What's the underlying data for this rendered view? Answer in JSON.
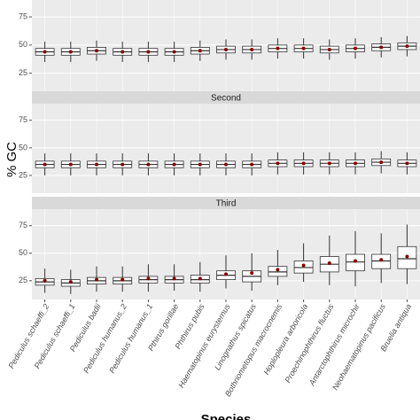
{
  "chart_data": {
    "type": "box",
    "ylabel": "% GC",
    "xlabel": "Species",
    "categories": [
      "Pediculus schaeffi_2",
      "Pediculus schaeffi_1",
      "Pediculus badii",
      "Pediculus humanus_2",
      "Pediculus humanus_1",
      "Pthirus gorillae",
      "Phthirus pubis",
      "Haematopinus eurysternus",
      "Linognathus spicatus",
      "Bothriometopus macrocnemis",
      "Hoplopleura arboricola",
      "Proechinophthirus fluctus",
      "Antarctophthirus microchir",
      "Neohaematopinus pacificus",
      "Bruelia antiqua"
    ],
    "panels": [
      {
        "ylim": [
          9,
          90
        ],
        "yticks": [
          25,
          50,
          75
        ],
        "low": [
          35,
          35,
          36,
          35,
          35,
          35,
          36,
          37,
          37,
          38,
          38,
          37,
          38,
          39,
          40
        ],
        "q1": [
          41,
          41,
          42,
          41,
          41,
          41,
          42,
          43,
          43,
          44,
          44,
          43,
          44,
          45,
          46
        ],
        "median": [
          44,
          44,
          45,
          44,
          44,
          44,
          45,
          46,
          46,
          47,
          47,
          46,
          47,
          48,
          49
        ],
        "q3": [
          47,
          47,
          48,
          47,
          47,
          47,
          48,
          49,
          49,
          50,
          50,
          49,
          50,
          51,
          52
        ],
        "high": [
          53,
          53,
          54,
          53,
          53,
          53,
          54,
          55,
          55,
          56,
          56,
          55,
          56,
          57,
          58
        ],
        "mean": [
          44,
          44,
          45,
          44,
          44,
          44,
          45,
          46,
          46,
          47,
          47,
          46,
          47,
          48,
          49
        ]
      },
      {
        "strip": "Second",
        "ylim": [
          9,
          90
        ],
        "yticks": [
          25,
          50,
          75
        ],
        "low": [
          25,
          25,
          25,
          25,
          25,
          25,
          25,
          25,
          25,
          26,
          26,
          26,
          26,
          27,
          26
        ],
        "q1": [
          32,
          32,
          32,
          32,
          32,
          32,
          32,
          32,
          32,
          33,
          33,
          33,
          33,
          34,
          33
        ],
        "median": [
          35,
          35,
          35,
          35,
          35,
          35,
          35,
          35,
          35,
          36,
          36,
          36,
          36,
          37,
          36
        ],
        "q3": [
          38,
          38,
          38,
          38,
          38,
          38,
          38,
          38,
          38,
          39,
          39,
          39,
          39,
          40,
          39
        ],
        "high": [
          45,
          45,
          45,
          45,
          45,
          45,
          45,
          45,
          45,
          46,
          46,
          46,
          46,
          47,
          46
        ],
        "mean": [
          35,
          35,
          35,
          35,
          35,
          35,
          35,
          35,
          35,
          36,
          36,
          36,
          36,
          37,
          36
        ]
      },
      {
        "strip": "Third",
        "ylim": [
          8,
          90
        ],
        "yticks": [
          25,
          50,
          75
        ],
        "low": [
          14,
          13,
          15,
          15,
          15,
          16,
          15,
          18,
          16,
          21,
          24,
          21,
          20,
          23,
          22
        ],
        "q1": [
          21,
          20,
          22,
          22,
          23,
          23,
          23,
          26,
          24,
          29,
          32,
          33,
          34,
          36,
          36
        ],
        "median": [
          24,
          23,
          25,
          25,
          26,
          26,
          26,
          30,
          29,
          33,
          37,
          40,
          42,
          43,
          45
        ],
        "q3": [
          27,
          26,
          28,
          28,
          29,
          29,
          30,
          34,
          34,
          38,
          43,
          47,
          49,
          49,
          56
        ],
        "high": [
          36,
          35,
          38,
          38,
          40,
          40,
          42,
          48,
          50,
          53,
          59,
          66,
          70,
          68,
          76
        ],
        "mean": [
          25,
          24,
          26,
          26,
          27,
          27,
          27,
          31,
          32,
          35,
          39,
          41,
          43,
          44,
          47
        ]
      }
    ]
  }
}
